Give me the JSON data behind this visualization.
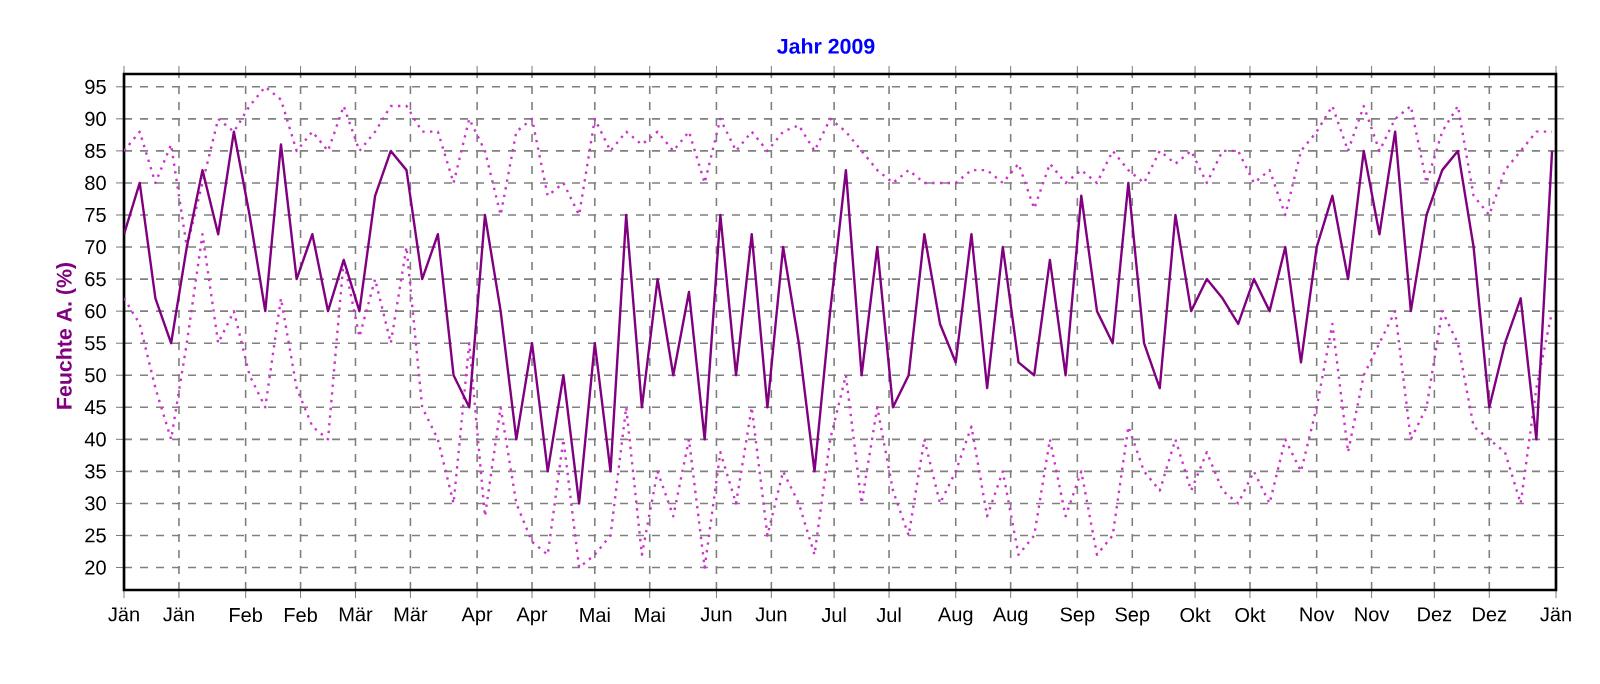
{
  "chart_data": {
    "type": "line",
    "title": "Jahr 2009",
    "ylabel": "Feuchte A.  (%)",
    "xlim": [
      "2009-01-01",
      "2010-01-01"
    ],
    "ylim": [
      16.5,
      97
    ],
    "xticks": [
      {
        "value": "2009-01-01",
        "label": "Jän"
      },
      {
        "value": "2009-01-15",
        "label": "Jän"
      },
      {
        "value": "2009-02-01",
        "label": "Feb"
      },
      {
        "value": "2009-02-15",
        "label": "Feb"
      },
      {
        "value": "2009-03-01",
        "label": "Mär"
      },
      {
        "value": "2009-03-15",
        "label": "Mär"
      },
      {
        "value": "2009-04-01",
        "label": "Apr"
      },
      {
        "value": "2009-04-15",
        "label": "Apr"
      },
      {
        "value": "2009-05-01",
        "label": "Mai"
      },
      {
        "value": "2009-05-15",
        "label": "Mai"
      },
      {
        "value": "2009-06-01",
        "label": "Jun"
      },
      {
        "value": "2009-06-15",
        "label": "Jun"
      },
      {
        "value": "2009-07-01",
        "label": "Jul"
      },
      {
        "value": "2009-07-15",
        "label": "Jul"
      },
      {
        "value": "2009-08-01",
        "label": "Aug"
      },
      {
        "value": "2009-08-15",
        "label": "Aug"
      },
      {
        "value": "2009-09-01",
        "label": "Sep"
      },
      {
        "value": "2009-09-15",
        "label": "Sep"
      },
      {
        "value": "2009-10-01",
        "label": "Okt"
      },
      {
        "value": "2009-10-15",
        "label": "Okt"
      },
      {
        "value": "2009-11-01",
        "label": "Nov"
      },
      {
        "value": "2009-11-15",
        "label": "Nov"
      },
      {
        "value": "2009-12-01",
        "label": "Dez"
      },
      {
        "value": "2009-12-15",
        "label": "Dez"
      },
      {
        "value": "2010-01-01",
        "label": "Jän"
      }
    ],
    "yticks": [
      20,
      25,
      30,
      35,
      40,
      45,
      50,
      55,
      60,
      65,
      70,
      75,
      80,
      85,
      90,
      95
    ],
    "grid": true,
    "marker": "none",
    "x": [
      "2009-01-01",
      "2009-01-05",
      "2009-01-09",
      "2009-01-13",
      "2009-01-17",
      "2009-01-21",
      "2009-01-25",
      "2009-01-29",
      "2009-02-02",
      "2009-02-06",
      "2009-02-10",
      "2009-02-14",
      "2009-02-18",
      "2009-02-22",
      "2009-02-26",
      "2009-03-02",
      "2009-03-06",
      "2009-03-10",
      "2009-03-14",
      "2009-03-18",
      "2009-03-22",
      "2009-03-26",
      "2009-03-30",
      "2009-04-03",
      "2009-04-07",
      "2009-04-11",
      "2009-04-15",
      "2009-04-19",
      "2009-04-23",
      "2009-04-27",
      "2009-05-01",
      "2009-05-05",
      "2009-05-09",
      "2009-05-13",
      "2009-05-17",
      "2009-05-21",
      "2009-05-25",
      "2009-05-29",
      "2009-06-02",
      "2009-06-06",
      "2009-06-10",
      "2009-06-14",
      "2009-06-18",
      "2009-06-22",
      "2009-06-26",
      "2009-06-30",
      "2009-07-04",
      "2009-07-08",
      "2009-07-12",
      "2009-07-16",
      "2009-07-20",
      "2009-07-24",
      "2009-07-28",
      "2009-08-01",
      "2009-08-05",
      "2009-08-09",
      "2009-08-13",
      "2009-08-17",
      "2009-08-21",
      "2009-08-25",
      "2009-08-29",
      "2009-09-02",
      "2009-09-06",
      "2009-09-10",
      "2009-09-14",
      "2009-09-18",
      "2009-09-22",
      "2009-09-26",
      "2009-09-30",
      "2009-10-04",
      "2009-10-08",
      "2009-10-12",
      "2009-10-16",
      "2009-10-20",
      "2009-10-24",
      "2009-10-28",
      "2009-11-01",
      "2009-11-05",
      "2009-11-09",
      "2009-11-13",
      "2009-11-17",
      "2009-11-21",
      "2009-11-25",
      "2009-11-29",
      "2009-12-03",
      "2009-12-07",
      "2009-12-11",
      "2009-12-15",
      "2009-12-19",
      "2009-12-23",
      "2009-12-27",
      "2009-12-31"
    ],
    "series": [
      {
        "color": "#cc33cc",
        "line_style": "dotted",
        "values": [
          85,
          88,
          80,
          86,
          70,
          80,
          90,
          88,
          92,
          95,
          93,
          85,
          88,
          85,
          92,
          85,
          88,
          92,
          92,
          88,
          88,
          80,
          90,
          85,
          75,
          88,
          90,
          78,
          80,
          75,
          90,
          85,
          88,
          86,
          88,
          85,
          88,
          80,
          90,
          85,
          88,
          85,
          88,
          89,
          85,
          90,
          88,
          85,
          82,
          80,
          82,
          80,
          80,
          80,
          82,
          82,
          80,
          83,
          76,
          83,
          80,
          82,
          80,
          85,
          82,
          80,
          85,
          83,
          85,
          80,
          85,
          85,
          80,
          82,
          75,
          85,
          88,
          92,
          85,
          92,
          85,
          90,
          92,
          80,
          88,
          92,
          78,
          75,
          82,
          85,
          88,
          88
        ]
      },
      {
        "color": "#cc33cc",
        "line_style": "dotted",
        "values": [
          62,
          58,
          48,
          40,
          55,
          72,
          55,
          60,
          50,
          45,
          62,
          48,
          42,
          40,
          68,
          56,
          65,
          55,
          70,
          45,
          40,
          30,
          55,
          28,
          45,
          30,
          24,
          22,
          40,
          20,
          22,
          25,
          45,
          22,
          35,
          28,
          40,
          20,
          38,
          30,
          45,
          25,
          35,
          30,
          22,
          40,
          50,
          30,
          45,
          32,
          25,
          40,
          30,
          35,
          42,
          28,
          35,
          22,
          25,
          40,
          28,
          35,
          22,
          25,
          42,
          35,
          32,
          40,
          32,
          38,
          32,
          30,
          35,
          30,
          40,
          35,
          45,
          58,
          38,
          50,
          55,
          60,
          40,
          45,
          60,
          55,
          42,
          40,
          38,
          30,
          48,
          60
        ]
      },
      {
        "color": "#800080",
        "line_style": "solid",
        "values": [
          72,
          80,
          62,
          55,
          70,
          82,
          72,
          88,
          75,
          60,
          86,
          65,
          72,
          60,
          68,
          60,
          78,
          85,
          82,
          65,
          72,
          50,
          45,
          75,
          60,
          40,
          55,
          35,
          50,
          30,
          55,
          35,
          75,
          45,
          65,
          50,
          63,
          40,
          75,
          50,
          72,
          45,
          70,
          55,
          35,
          60,
          82,
          50,
          70,
          45,
          50,
          72,
          58,
          52,
          72,
          48,
          70,
          52,
          50,
          68,
          50,
          78,
          60,
          55,
          80,
          55,
          48,
          75,
          60,
          65,
          62,
          58,
          65,
          60,
          70,
          52,
          70,
          78,
          65,
          85,
          72,
          88,
          60,
          75,
          82,
          85,
          70,
          45,
          55,
          62,
          40,
          85
        ]
      }
    ]
  }
}
